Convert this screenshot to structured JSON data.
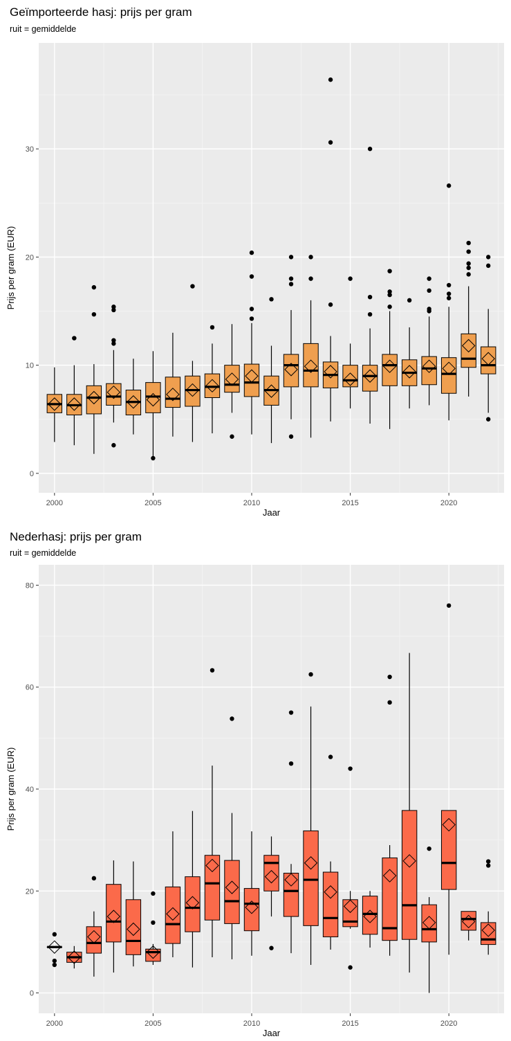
{
  "chart_data": [
    {
      "type": "box",
      "title": "Geïmporteerde hasj: prijs per gram",
      "subtitle": "ruit = gemiddelde",
      "xlabel": "Jaar",
      "ylabel": "Prijs per gram (EUR)",
      "xlim": [
        1999.2,
        2022.8
      ],
      "ylim": [
        -1.8,
        39.8
      ],
      "xticks": [
        2000,
        2005,
        2010,
        2015,
        2020
      ],
      "yticks": [
        0,
        10,
        20,
        30
      ],
      "fill_color": "#EF9F4F",
      "boxes": [
        {
          "year": 2000,
          "min": 2.9,
          "q1": 5.6,
          "median": 6.4,
          "q3": 7.3,
          "max": 9.8,
          "mean": 6.4,
          "outliers": []
        },
        {
          "year": 2001,
          "min": 2.6,
          "q1": 5.4,
          "median": 6.3,
          "q3": 7.3,
          "max": 10.0,
          "mean": 6.4,
          "outliers": [
            12.5
          ]
        },
        {
          "year": 2002,
          "min": 1.8,
          "q1": 5.5,
          "median": 7.0,
          "q3": 8.1,
          "max": 10.1,
          "mean": 7.0,
          "outliers": [
            14.7,
            17.2
          ]
        },
        {
          "year": 2003,
          "min": 4.7,
          "q1": 6.3,
          "median": 7.1,
          "q3": 8.3,
          "max": 11.4,
          "mean": 7.5,
          "outliers": [
            2.6,
            12.0,
            12.3,
            15.1,
            15.4
          ]
        },
        {
          "year": 2004,
          "min": 3.6,
          "q1": 5.4,
          "median": 6.6,
          "q3": 7.7,
          "max": 10.6,
          "mean": 6.6,
          "outliers": []
        },
        {
          "year": 2005,
          "min": 1.4,
          "q1": 5.6,
          "median": 7.1,
          "q3": 8.4,
          "max": 11.3,
          "mean": 6.8,
          "outliers": [
            1.4
          ]
        },
        {
          "year": 2006,
          "min": 3.4,
          "q1": 6.1,
          "median": 6.9,
          "q3": 8.9,
          "max": 13.0,
          "mean": 7.3,
          "outliers": []
        },
        {
          "year": 2007,
          "min": 2.9,
          "q1": 6.2,
          "median": 7.7,
          "q3": 9.0,
          "max": 10.4,
          "mean": 7.7,
          "outliers": [
            17.3
          ]
        },
        {
          "year": 2008,
          "min": 3.7,
          "q1": 7.0,
          "median": 8.0,
          "q3": 9.2,
          "max": 12.0,
          "mean": 8.1,
          "outliers": [
            13.5
          ]
        },
        {
          "year": 2009,
          "min": 5.6,
          "q1": 7.5,
          "median": 8.2,
          "q3": 10.0,
          "max": 13.8,
          "mean": 8.7,
          "outliers": [
            3.4
          ]
        },
        {
          "year": 2010,
          "min": 3.6,
          "q1": 7.1,
          "median": 8.4,
          "q3": 10.1,
          "max": 13.9,
          "mean": 9.0,
          "outliers": [
            14.3,
            15.2,
            18.2,
            20.4
          ]
        },
        {
          "year": 2011,
          "min": 2.8,
          "q1": 6.3,
          "median": 7.7,
          "q3": 9.0,
          "max": 11.8,
          "mean": 7.6,
          "outliers": [
            16.1
          ]
        },
        {
          "year": 2012,
          "min": 5.0,
          "q1": 8.0,
          "median": 10.0,
          "q3": 11.0,
          "max": 15.1,
          "mean": 9.6,
          "outliers": [
            3.4,
            17.5,
            18.0,
            20.0
          ]
        },
        {
          "year": 2013,
          "min": 3.3,
          "q1": 8.0,
          "median": 9.5,
          "q3": 12.0,
          "max": 16.0,
          "mean": 9.9,
          "outliers": [
            18.0,
            20.0
          ]
        },
        {
          "year": 2014,
          "min": 4.8,
          "q1": 7.9,
          "median": 9.1,
          "q3": 10.3,
          "max": 12.7,
          "mean": 9.4,
          "outliers": [
            15.6,
            30.6,
            36.4
          ]
        },
        {
          "year": 2015,
          "min": 6.0,
          "q1": 8.0,
          "median": 8.6,
          "q3": 10.0,
          "max": 12.0,
          "mean": 8.7,
          "outliers": [
            18.0
          ]
        },
        {
          "year": 2016,
          "min": 4.6,
          "q1": 7.6,
          "median": 9.0,
          "q3": 10.0,
          "max": 13.4,
          "mean": 9.0,
          "outliers": [
            14.7,
            16.3,
            30.0
          ]
        },
        {
          "year": 2017,
          "min": 4.1,
          "q1": 8.1,
          "median": 10.0,
          "q3": 11.0,
          "max": 15.0,
          "mean": 9.9,
          "outliers": [
            15.4,
            16.5,
            16.8,
            18.7
          ]
        },
        {
          "year": 2018,
          "min": 6.0,
          "q1": 8.1,
          "median": 9.3,
          "q3": 10.5,
          "max": 13.5,
          "mean": 9.4,
          "outliers": [
            16.0
          ]
        },
        {
          "year": 2019,
          "min": 6.3,
          "q1": 8.2,
          "median": 9.7,
          "q3": 10.8,
          "max": 14.5,
          "mean": 9.9,
          "outliers": [
            15.0,
            15.2,
            16.9,
            18.0
          ]
        },
        {
          "year": 2020,
          "min": 4.9,
          "q1": 7.4,
          "median": 9.2,
          "q3": 10.7,
          "max": 15.4,
          "mean": 9.7,
          "outliers": [
            16.2,
            16.6,
            17.4,
            26.6
          ]
        },
        {
          "year": 2021,
          "min": 7.1,
          "q1": 9.8,
          "median": 10.6,
          "q3": 12.9,
          "max": 17.3,
          "mean": 11.8,
          "outliers": [
            18.4,
            19.0,
            19.4,
            20.5,
            21.3
          ]
        },
        {
          "year": 2022,
          "min": 5.6,
          "q1": 9.2,
          "median": 10.0,
          "q3": 11.7,
          "max": 15.2,
          "mean": 10.6,
          "outliers": [
            5.0,
            19.2,
            20.0
          ]
        }
      ]
    },
    {
      "type": "box",
      "title": "Nederhasj: prijs per gram",
      "subtitle": "ruit = gemiddelde",
      "xlabel": "Jaar",
      "ylabel": "Prijs per gram (EUR)",
      "xlim": [
        1999.2,
        2022.8
      ],
      "ylim": [
        -4,
        84
      ],
      "xticks": [
        2000,
        2005,
        2010,
        2015,
        2020
      ],
      "yticks": [
        0,
        20,
        40,
        60,
        80
      ],
      "fill_color": "#FB6A4A",
      "boxes": [
        {
          "year": 2000,
          "min": 9.0,
          "q1": 9.0,
          "median": 9.0,
          "q3": 9.0,
          "max": 9.0,
          "mean": 9.0,
          "outliers": [
            5.5,
            6.3,
            11.5
          ]
        },
        {
          "year": 2001,
          "min": 4.8,
          "q1": 6.0,
          "median": 7.0,
          "q3": 8.0,
          "max": 9.2,
          "mean": 7.0,
          "outliers": []
        },
        {
          "year": 2002,
          "min": 3.2,
          "q1": 7.8,
          "median": 9.8,
          "q3": 13.0,
          "max": 16.0,
          "mean": 11.0,
          "outliers": [
            22.5
          ]
        },
        {
          "year": 2003,
          "min": 4.0,
          "q1": 10.0,
          "median": 14.0,
          "q3": 21.3,
          "max": 26.0,
          "mean": 15.0,
          "outliers": []
        },
        {
          "year": 2004,
          "min": 5.2,
          "q1": 7.5,
          "median": 10.2,
          "q3": 18.3,
          "max": 25.8,
          "mean": 12.5,
          "outliers": []
        },
        {
          "year": 2005,
          "min": 5.5,
          "q1": 6.2,
          "median": 8.0,
          "q3": 8.6,
          "max": 9.6,
          "mean": 8.0,
          "outliers": [
            13.8,
            19.5
          ]
        },
        {
          "year": 2006,
          "min": 7.0,
          "q1": 9.7,
          "median": 13.5,
          "q3": 20.8,
          "max": 31.7,
          "mean": 15.5,
          "outliers": []
        },
        {
          "year": 2007,
          "min": 5.0,
          "q1": 12.0,
          "median": 16.7,
          "q3": 22.8,
          "max": 35.7,
          "mean": 17.7,
          "outliers": []
        },
        {
          "year": 2008,
          "min": 7.0,
          "q1": 14.3,
          "median": 21.5,
          "q3": 27.0,
          "max": 44.6,
          "mean": 25.0,
          "outliers": [
            63.3
          ]
        },
        {
          "year": 2009,
          "min": 6.6,
          "q1": 13.6,
          "median": 18.0,
          "q3": 26.0,
          "max": 35.3,
          "mean": 20.7,
          "outliers": [
            53.8
          ]
        },
        {
          "year": 2010,
          "min": 7.3,
          "q1": 12.2,
          "median": 17.5,
          "q3": 20.5,
          "max": 31.7,
          "mean": 16.8,
          "outliers": []
        },
        {
          "year": 2011,
          "min": 15.0,
          "q1": 20.0,
          "median": 25.5,
          "q3": 27.0,
          "max": 30.7,
          "mean": 22.8,
          "outliers": [
            8.8
          ]
        },
        {
          "year": 2012,
          "min": 7.8,
          "q1": 15.0,
          "median": 20.0,
          "q3": 23.5,
          "max": 25.3,
          "mean": 22.2,
          "outliers": [
            45.0,
            55.0
          ]
        },
        {
          "year": 2013,
          "min": 5.5,
          "q1": 13.2,
          "median": 22.2,
          "q3": 31.8,
          "max": 56.2,
          "mean": 25.5,
          "outliers": [
            62.5
          ]
        },
        {
          "year": 2014,
          "min": 8.5,
          "q1": 11.0,
          "median": 14.7,
          "q3": 23.7,
          "max": 25.8,
          "mean": 19.8,
          "outliers": [
            46.3
          ]
        },
        {
          "year": 2015,
          "min": 12.6,
          "q1": 13.0,
          "median": 14.0,
          "q3": 18.3,
          "max": 20.0,
          "mean": 17.0,
          "outliers": [
            5.0,
            44.0
          ]
        },
        {
          "year": 2016,
          "min": 8.9,
          "q1": 11.5,
          "median": 15.5,
          "q3": 19.0,
          "max": 20.0,
          "mean": 15.0,
          "outliers": []
        },
        {
          "year": 2017,
          "min": 7.3,
          "q1": 10.3,
          "median": 12.7,
          "q3": 26.5,
          "max": 29.0,
          "mean": 23.0,
          "outliers": [
            57.0,
            62.0
          ]
        },
        {
          "year": 2018,
          "min": 4.0,
          "q1": 10.5,
          "median": 17.2,
          "q3": 35.8,
          "max": 66.7,
          "mean": 25.9,
          "outliers": []
        },
        {
          "year": 2019,
          "min": 0.0,
          "q1": 10.0,
          "median": 12.5,
          "q3": 17.3,
          "max": 18.8,
          "mean": 13.8,
          "outliers": [
            28.3
          ]
        },
        {
          "year": 2020,
          "min": 7.5,
          "q1": 20.3,
          "median": 25.5,
          "q3": 35.8,
          "max": 35.8,
          "mean": 33.0,
          "outliers": [
            76.0
          ]
        },
        {
          "year": 2021,
          "min": 10.3,
          "q1": 12.3,
          "median": 14.5,
          "q3": 16.0,
          "max": 16.0,
          "mean": 14.0,
          "outliers": []
        },
        {
          "year": 2022,
          "min": 7.5,
          "q1": 9.5,
          "median": 10.5,
          "q3": 13.8,
          "max": 16.0,
          "mean": 12.3,
          "outliers": [
            25.0,
            25.8
          ]
        }
      ]
    }
  ]
}
